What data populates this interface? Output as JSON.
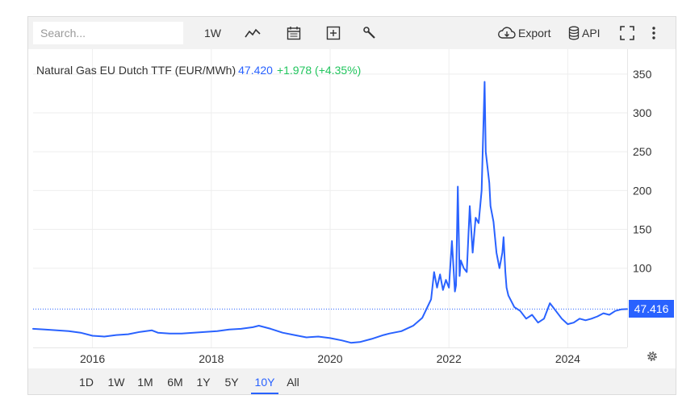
{
  "toolbar": {
    "search_placeholder": "Search...",
    "interval_label": "1W",
    "export_label": "Export",
    "api_label": "API"
  },
  "legend": {
    "name": "Natural Gas EU Dutch TTF (EUR/MWh)",
    "price": "47.420",
    "change": "+1.978 (+4.35%)",
    "change_color": "#22c55e"
  },
  "last_price_tag": "47.416",
  "ranges": [
    {
      "label": "1D",
      "active": false
    },
    {
      "label": "1W",
      "active": false
    },
    {
      "label": "1M",
      "active": false
    },
    {
      "label": "6M",
      "active": false
    },
    {
      "label": "1Y",
      "active": false
    },
    {
      "label": "5Y",
      "active": false
    },
    {
      "label": "10Y",
      "active": true
    },
    {
      "label": "All",
      "active": false
    }
  ],
  "colors": {
    "line": "#2962ff",
    "accent": "#2962ff",
    "positive": "#22c55e"
  },
  "chart_data": {
    "type": "line",
    "ylim": [
      -2,
      382
    ],
    "xlim": [
      2015.0,
      2025.0
    ],
    "y_ticks": [
      100,
      150,
      200,
      250,
      300,
      350
    ],
    "y_tick_labels": [
      "100",
      "150",
      "200",
      "250",
      "300",
      "350"
    ],
    "x_ticks": [
      2016,
      2018,
      2020,
      2022,
      2024
    ],
    "x_tick_labels": [
      "2016",
      "2018",
      "2020",
      "2022",
      "2024"
    ],
    "last_value": 47.416,
    "grid": true,
    "series": [
      {
        "x": [
          2015.0,
          2015.2,
          2015.4,
          2015.6,
          2015.8,
          2016.0,
          2016.2,
          2016.4,
          2016.6,
          2016.8,
          2017.0,
          2017.1,
          2017.3,
          2017.5,
          2017.7,
          2017.9,
          2018.1,
          2018.3,
          2018.5,
          2018.7,
          2018.8,
          2019.0,
          2019.2,
          2019.4,
          2019.6,
          2019.8,
          2020.0,
          2020.2,
          2020.35,
          2020.5,
          2020.7,
          2020.9,
          2021.0,
          2021.2,
          2021.4,
          2021.55,
          2021.7,
          2021.75,
          2021.8,
          2021.85,
          2021.9,
          2021.95,
          2022.0,
          2022.05,
          2022.1,
          2022.12,
          2022.15,
          2022.18,
          2022.2,
          2022.25,
          2022.3,
          2022.35,
          2022.4,
          2022.45,
          2022.5,
          2022.55,
          2022.6,
          2022.62,
          2022.65,
          2022.68,
          2022.7,
          2022.75,
          2022.8,
          2022.85,
          2022.9,
          2022.92,
          2022.95,
          2022.97,
          2023.0,
          2023.1,
          2023.2,
          2023.3,
          2023.4,
          2023.5,
          2023.6,
          2023.7,
          2023.75,
          2023.8,
          2023.9,
          2024.0,
          2024.1,
          2024.2,
          2024.3,
          2024.4,
          2024.5,
          2024.6,
          2024.7,
          2024.8,
          2024.9,
          2025.0
        ],
        "y": [
          22,
          21,
          20,
          19,
          17,
          13,
          12,
          14,
          15,
          18,
          20,
          17,
          16,
          16,
          17,
          18,
          19,
          21,
          22,
          24,
          26,
          22,
          17,
          14,
          11,
          12,
          10,
          7,
          4,
          5,
          9,
          14,
          16,
          19,
          26,
          36,
          60,
          95,
          75,
          92,
          72,
          85,
          75,
          135,
          70,
          78,
          205,
          90,
          110,
          100,
          95,
          180,
          120,
          165,
          158,
          200,
          340,
          250,
          230,
          210,
          180,
          160,
          120,
          100,
          120,
          140,
          95,
          75,
          65,
          50,
          45,
          35,
          40,
          30,
          35,
          55,
          50,
          45,
          35,
          28,
          30,
          35,
          33,
          35,
          38,
          42,
          40,
          45,
          47,
          47.4
        ]
      }
    ]
  }
}
